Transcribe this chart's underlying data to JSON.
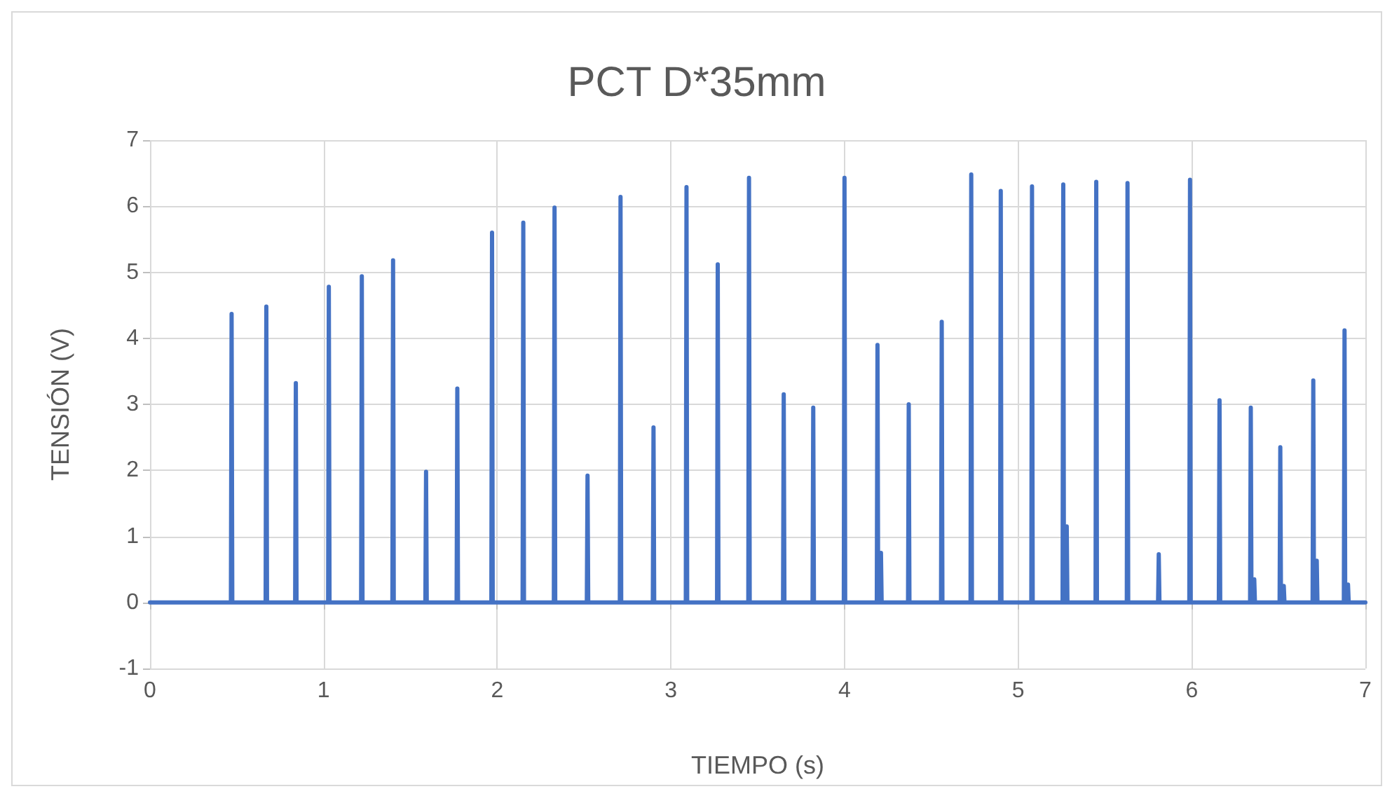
{
  "chart_data": {
    "type": "line",
    "title": "PCT D*35mm",
    "xlabel": "TIEMPO (s)",
    "ylabel": "TENSIÓN (V)",
    "xlim": [
      0,
      7
    ],
    "xticks": [
      0,
      1,
      2,
      3,
      4,
      5,
      6,
      7
    ],
    "ylim": [
      -1,
      7
    ],
    "yticks": [
      -1,
      0,
      1,
      2,
      3,
      4,
      5,
      6,
      7
    ],
    "grid": true,
    "marker": "none",
    "line_style": "solid",
    "series": [
      {
        "color": "#4472c4",
        "x": [
          0,
          0.466,
          0.47,
          0.474,
          0.666,
          0.67,
          0.674,
          0.836,
          0.84,
          0.844,
          1.026,
          1.03,
          1.034,
          1.216,
          1.22,
          1.224,
          1.396,
          1.4,
          1.404,
          1.586,
          1.59,
          1.594,
          1.766,
          1.77,
          1.774,
          1.966,
          1.97,
          1.974,
          2.146,
          2.15,
          2.154,
          2.326,
          2.33,
          2.334,
          2.516,
          2.52,
          2.524,
          2.706,
          2.71,
          2.714,
          2.896,
          2.9,
          2.904,
          3.086,
          3.09,
          3.094,
          3.266,
          3.27,
          3.274,
          3.446,
          3.45,
          3.454,
          3.646,
          3.65,
          3.654,
          3.816,
          3.82,
          3.824,
          3.996,
          4,
          4.004,
          4.186,
          4.19,
          4.194,
          4.206,
          4.21,
          4.214,
          4.366,
          4.37,
          4.374,
          4.556,
          4.56,
          4.564,
          4.726,
          4.73,
          4.734,
          4.896,
          4.9,
          4.904,
          5.076,
          5.08,
          5.084,
          5.256,
          5.26,
          5.264,
          5.276,
          5.28,
          5.284,
          5.446,
          5.45,
          5.454,
          5.626,
          5.63,
          5.634,
          5.806,
          5.81,
          5.814,
          5.986,
          5.99,
          5.994,
          6.156,
          6.16,
          6.164,
          6.336,
          6.34,
          6.344,
          6.356,
          6.36,
          6.364,
          6.506,
          6.51,
          6.514,
          6.526,
          6.53,
          6.534,
          6.696,
          6.7,
          6.704,
          6.716,
          6.72,
          6.724,
          6.876,
          6.88,
          6.884,
          6.896,
          6.9,
          6.904,
          7
        ],
        "values": [
          0,
          0,
          4.37,
          0,
          0,
          4.48,
          0,
          0,
          3.32,
          0,
          0,
          4.78,
          0,
          0,
          4.94,
          0,
          0,
          5.18,
          0,
          0,
          1.98,
          0,
          0,
          3.24,
          0,
          0,
          5.6,
          0,
          0,
          5.75,
          0,
          0,
          5.98,
          0,
          0,
          1.92,
          0,
          0,
          6.14,
          0,
          0,
          2.65,
          0,
          0,
          6.29,
          0,
          0,
          5.12,
          0,
          0,
          6.43,
          0,
          0,
          3.15,
          0,
          0,
          2.95,
          0,
          0,
          6.43,
          0,
          0,
          3.9,
          0,
          0,
          0.75,
          0,
          0,
          3.0,
          0,
          0,
          4.25,
          0,
          0,
          6.48,
          0,
          0,
          6.23,
          0,
          0,
          6.3,
          0,
          0,
          6.33,
          0,
          0,
          1.15,
          0,
          0,
          6.37,
          0,
          0,
          6.35,
          0,
          0,
          0.73,
          0,
          0,
          6.4,
          0,
          0,
          3.06,
          0,
          0,
          2.95,
          0,
          0,
          0.35,
          0,
          0,
          2.35,
          0,
          0,
          0.25,
          0,
          0,
          3.36,
          0,
          0,
          0.63,
          0,
          0,
          4.12,
          0,
          0,
          0.27,
          0,
          0
        ]
      }
    ]
  }
}
